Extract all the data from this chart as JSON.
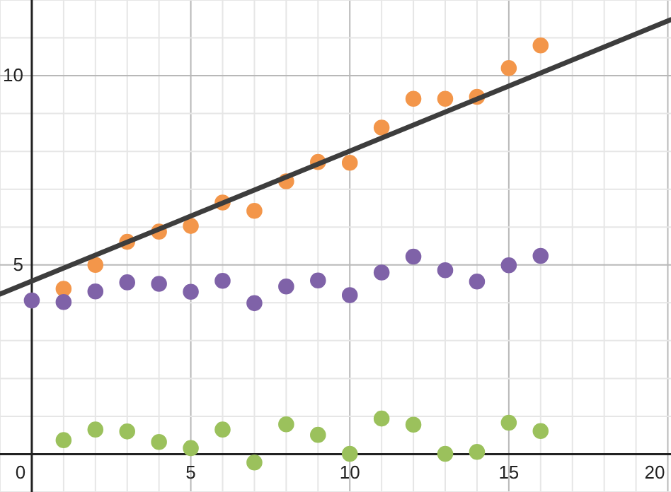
{
  "chart_data": {
    "type": "scatter",
    "xlim": [
      -1,
      20.1
    ],
    "ylim": [
      -1,
      12
    ],
    "xticks": [
      {
        "value": -1,
        "label": null
      },
      0,
      {
        "value": 1,
        "label": null
      },
      {
        "value": 2,
        "label": null
      },
      {
        "value": 3,
        "label": null
      },
      {
        "value": 4,
        "label": null
      },
      5,
      {
        "value": 6,
        "label": null
      },
      {
        "value": 7,
        "label": null
      },
      {
        "value": 8,
        "label": null
      },
      {
        "value": 9,
        "label": null
      },
      10,
      {
        "value": 11,
        "label": null
      },
      {
        "value": 12,
        "label": null
      },
      {
        "value": 13,
        "label": null
      },
      {
        "value": 14,
        "label": null
      },
      15,
      {
        "value": 16,
        "label": null
      },
      {
        "value": 17,
        "label": null
      },
      {
        "value": 18,
        "label": null
      },
      {
        "value": 19,
        "label": null
      },
      20
    ],
    "yticks": [
      {
        "value": -1,
        "label": null
      },
      {
        "value": 0,
        "label": null
      },
      {
        "value": 1,
        "label": null
      },
      {
        "value": 2,
        "label": null
      },
      {
        "value": 3,
        "label": null
      },
      {
        "value": 4,
        "label": null
      },
      5,
      {
        "value": 6,
        "label": null
      },
      {
        "value": 7,
        "label": null
      },
      {
        "value": 8,
        "label": null
      },
      {
        "value": 9,
        "label": null
      },
      10,
      {
        "value": 11,
        "label": null
      },
      {
        "value": 12,
        "label": null
      }
    ],
    "grid": true,
    "marker": "circle",
    "series": [
      {
        "color": "#f3964a",
        "x": [
          1,
          2,
          3,
          4,
          5,
          6,
          7,
          8,
          9,
          10,
          11,
          12,
          13,
          14,
          15,
          16
        ],
        "values": [
          4.37,
          5.0,
          5.61,
          5.88,
          6.03,
          6.65,
          6.43,
          7.21,
          7.72,
          7.7,
          8.63,
          9.39,
          9.39,
          9.44,
          10.2,
          10.8
        ]
      },
      {
        "color": "#7f62a8",
        "x": [
          0,
          1,
          2,
          3,
          4,
          5,
          6,
          7,
          8,
          9,
          10,
          11,
          12,
          13,
          14,
          15,
          16
        ],
        "values": [
          4.06,
          4.02,
          4.3,
          4.54,
          4.5,
          4.29,
          4.58,
          3.99,
          4.43,
          4.59,
          4.2,
          4.8,
          5.22,
          4.86,
          4.56,
          4.99,
          5.24
        ]
      },
      {
        "color": "#9bc15c",
        "x": [
          1,
          2,
          3,
          4,
          5,
          6,
          7,
          8,
          9,
          10,
          11,
          12,
          13,
          14,
          15,
          16
        ],
        "values": [
          0.37,
          0.65,
          0.6,
          0.32,
          0.16,
          0.65,
          -0.22,
          0.79,
          0.51,
          0.01,
          0.94,
          0.78,
          0.01,
          0.06,
          0.83,
          0.61
        ]
      },
      {
        "type": "line",
        "color": "#3d3d3d",
        "marker": "none",
        "line_style": "solid",
        "x": [
          -1,
          20.1
        ],
        "values": [
          4.23,
          11.48
        ]
      }
    ]
  }
}
